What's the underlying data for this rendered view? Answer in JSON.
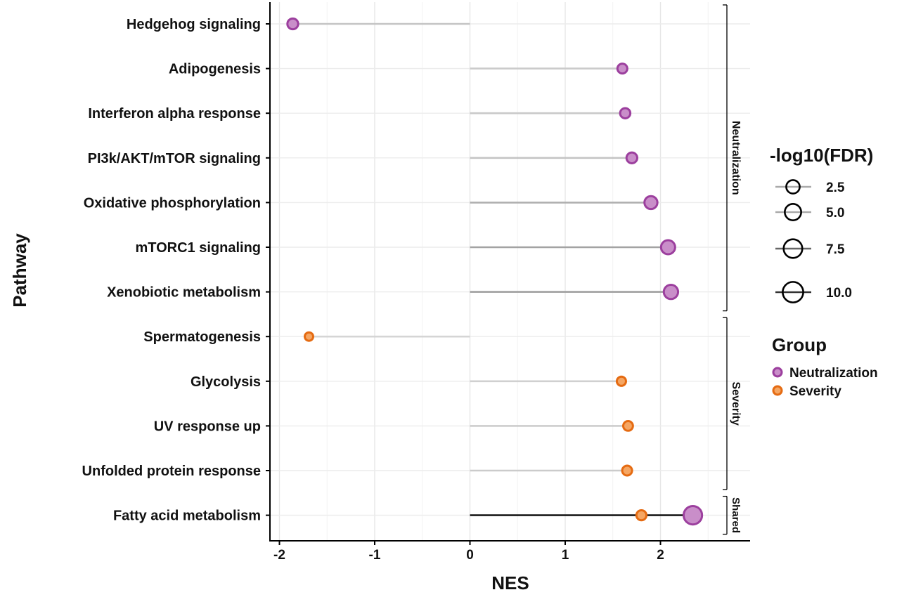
{
  "chart_data": {
    "type": "scatter",
    "title": "",
    "xlabel": "NES",
    "ylabel": "Pathway",
    "xlim": [
      -2.1,
      2.85
    ],
    "x_ticks": [
      "-2",
      "-1",
      "0",
      "1",
      "2"
    ],
    "x_tick_values": [
      -2,
      -1,
      0,
      1,
      2
    ],
    "grid": true,
    "facets": [
      {
        "name": "Neutralization",
        "pathways": [
          "Hedgehog signaling",
          "Adipogenesis",
          "Interferon alpha response",
          "PI3k/AKT/mTOR signaling",
          "Oxidative phosphorylation",
          "mTORC1 signaling",
          "Xenobiotic metabolism"
        ]
      },
      {
        "name": "Severity",
        "pathways": [
          "Spermatogenesis",
          "Glycolysis",
          "UV response up",
          "Unfolded protein response"
        ]
      },
      {
        "name": "Shared",
        "pathways": [
          "Fatty acid metabolism"
        ]
      }
    ],
    "categories": [
      "Hedgehog signaling",
      "Adipogenesis",
      "Interferon alpha response",
      "PI3k/AKT/mTOR signaling",
      "Oxidative phosphorylation",
      "mTORC1 signaling",
      "Xenobiotic metabolism",
      "Spermatogenesis",
      "Glycolysis",
      "UV response up",
      "Unfolded protein response",
      "Fatty acid metabolism"
    ],
    "series": [
      {
        "name": "Neutralization",
        "color": "#9c3f9e",
        "fill": "#c98ec9",
        "points": [
          {
            "pathway": "Hedgehog signaling",
            "nes": -1.86,
            "neg_log10_fdr": 2.6
          },
          {
            "pathway": "Adipogenesis",
            "nes": 1.6,
            "neg_log10_fdr": 2.0
          },
          {
            "pathway": "Interferon alpha response",
            "nes": 1.63,
            "neg_log10_fdr": 2.2
          },
          {
            "pathway": "PI3k/AKT/mTOR signaling",
            "nes": 1.7,
            "neg_log10_fdr": 2.6
          },
          {
            "pathway": "Oxidative phosphorylation",
            "nes": 1.9,
            "neg_log10_fdr": 4.4
          },
          {
            "pathway": "mTORC1 signaling",
            "nes": 2.08,
            "neg_log10_fdr": 5.5
          },
          {
            "pathway": "Xenobiotic metabolism",
            "nes": 2.11,
            "neg_log10_fdr": 5.7
          },
          {
            "pathway": "Fatty acid metabolism",
            "nes": 2.34,
            "neg_log10_fdr": 11.0
          }
        ]
      },
      {
        "name": "Severity",
        "color": "#e56b12",
        "fill": "#f5a663",
        "points": [
          {
            "pathway": "Spermatogenesis",
            "nes": -1.69,
            "neg_log10_fdr": 1.2
          },
          {
            "pathway": "Glycolysis",
            "nes": 1.59,
            "neg_log10_fdr": 1.6
          },
          {
            "pathway": "UV response up",
            "nes": 1.66,
            "neg_log10_fdr": 1.9
          },
          {
            "pathway": "Unfolded protein response",
            "nes": 1.65,
            "neg_log10_fdr": 2.0
          },
          {
            "pathway": "Fatty acid metabolism",
            "nes": 1.8,
            "neg_log10_fdr": 2.1
          }
        ]
      }
    ],
    "legend_size": {
      "title": "-log10(FDR)",
      "labels": [
        "2.5",
        "5.0",
        "7.5",
        "10.0"
      ],
      "values": [
        2.5,
        5.0,
        7.5,
        10.0
      ]
    },
    "legend_color": {
      "title": "Group",
      "labels": [
        "Neutralization",
        "Severity"
      ]
    },
    "legend_position": "right"
  }
}
